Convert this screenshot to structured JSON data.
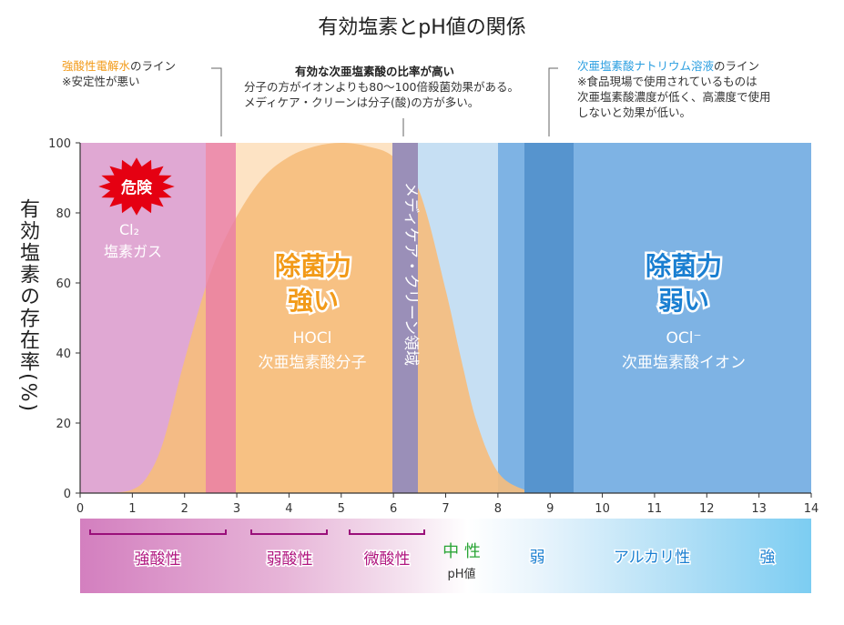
{
  "title": "有効塩素とpH値の関係",
  "ylabel": "有効塩素の存在率(%)",
  "annotations": {
    "left": {
      "highlight": "強酸性電解水",
      "rest": "のライン",
      "note": "※安定性が悪い"
    },
    "middle": {
      "line1": "有効な次亜塩素酸の比率が高い",
      "line2": "分子の方がイオンよりも80〜100倍殺菌効果がある。",
      "line3": "メディケア・クリーンは分子(酸)の方が多い。"
    },
    "right": {
      "highlight": "次亜塩素酸ナトリウム溶液",
      "rest": "のライン",
      "line2": "※食品現場で使用されているものは",
      "line3": "次亜塩素酸濃度が低く、高濃度で使用",
      "line4": "しないと効果が低い。"
    }
  },
  "regions": {
    "danger": "危険",
    "cl2_formula": "Cl₂",
    "cl2_name": "塩素ガス",
    "strong1": "除菌力",
    "strong2": "強い",
    "hocl_formula": "HOCl",
    "hocl_name": "次亜塩素酸分子",
    "mediclean": "メディケア・クリーン領域",
    "weak1": "除菌力",
    "weak2": "弱い",
    "ocl_formula": "OCl⁻",
    "ocl_name": "次亜塩素酸イオン"
  },
  "ph_scale": {
    "strong_acid": "強酸性",
    "weak_acid": "弱酸性",
    "slight_acid": "微酸性",
    "neutral": "中 性",
    "ph_label": "pH値",
    "weak": "弱",
    "alkaline": "アルカリ性",
    "strong": "強"
  },
  "colors": {
    "cl2_zone": "#e0a8d3",
    "hocl_fill": "#f6bd7c",
    "ocl_fill": "#7eb3e4",
    "acid_line": "#e87aa8",
    "mediclean_band": "#9a8fb8",
    "naclo_band": "#5694ce",
    "highlight_orange": "#f29a18",
    "highlight_blue": "#2a9ee0"
  },
  "chart_data": {
    "type": "area",
    "xlim": [
      0,
      14
    ],
    "ylim": [
      0,
      100
    ],
    "x_ticks": [
      0,
      1,
      2,
      3,
      4,
      5,
      6,
      7,
      8,
      9,
      10,
      11,
      12,
      13,
      14
    ],
    "y_ticks": [
      0,
      20,
      40,
      60,
      80,
      100
    ],
    "series": [
      {
        "name": "HOCl",
        "x": [
          0,
          0.5,
          1,
          1.3,
          1.6,
          2,
          2.5,
          3,
          3.5,
          4,
          4.5,
          5,
          5.5,
          6,
          6.5,
          7,
          7.3,
          7.6,
          8,
          8.5,
          9,
          10
        ],
        "values": [
          0,
          0,
          1,
          5,
          15,
          38,
          63,
          79,
          90,
          96,
          99,
          100,
          99,
          96,
          86,
          58,
          38,
          20,
          6,
          1,
          0,
          0
        ]
      }
    ],
    "bands": [
      {
        "name": "強酸性電解水",
        "x": [
          2.4,
          3.0
        ]
      },
      {
        "name": "メディケア・クリーン領域",
        "x": [
          6.0,
          6.5
        ]
      },
      {
        "name": "次亜塩素酸ナトリウム溶液",
        "x": [
          8.5,
          9.5
        ]
      }
    ]
  }
}
